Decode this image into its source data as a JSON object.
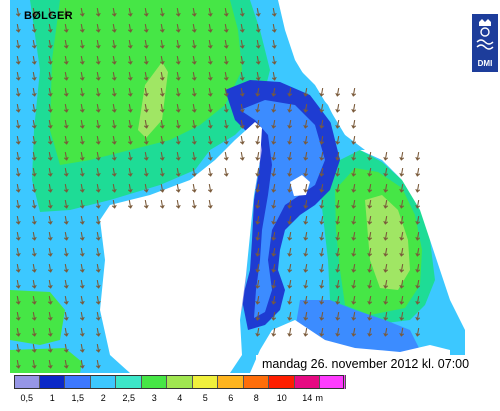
{
  "map": {
    "title": "BØLGER",
    "timestamp": "mandag 26. november 2012 kl. 07:00",
    "logo_text": "DMI",
    "colors": {
      "land": "#ffffff",
      "sea_low": "#7f7fe6",
      "sea_1": "#1e3cd2",
      "sea_1_5": "#3c8cff",
      "sea_2": "#3cc8ff",
      "sea_2_5": "#1edc96",
      "sea_3": "#46e646",
      "sea_4": "#a0e664",
      "arrow": "#7a5a3a"
    }
  },
  "legend": {
    "unit": "m",
    "classes": [
      {
        "label": "0,5",
        "color": "#9696e6"
      },
      {
        "label": "1",
        "color": "#0a28c8"
      },
      {
        "label": "1,5",
        "color": "#3c78ff"
      },
      {
        "label": "2",
        "color": "#3cc8ff"
      },
      {
        "label": "2,5",
        "color": "#3ce6c8"
      },
      {
        "label": "3",
        "color": "#46e646"
      },
      {
        "label": "4",
        "color": "#a0e650"
      },
      {
        "label": "5",
        "color": "#f0f03c"
      },
      {
        "label": "6",
        "color": "#ffb41e"
      },
      {
        "label": "8",
        "color": "#ff6e0a"
      },
      {
        "label": "10",
        "color": "#ff1e00"
      },
      {
        "label": "14",
        "color": "#e60a82"
      },
      {
        "label": "",
        "color": "#ff3cff"
      }
    ]
  }
}
